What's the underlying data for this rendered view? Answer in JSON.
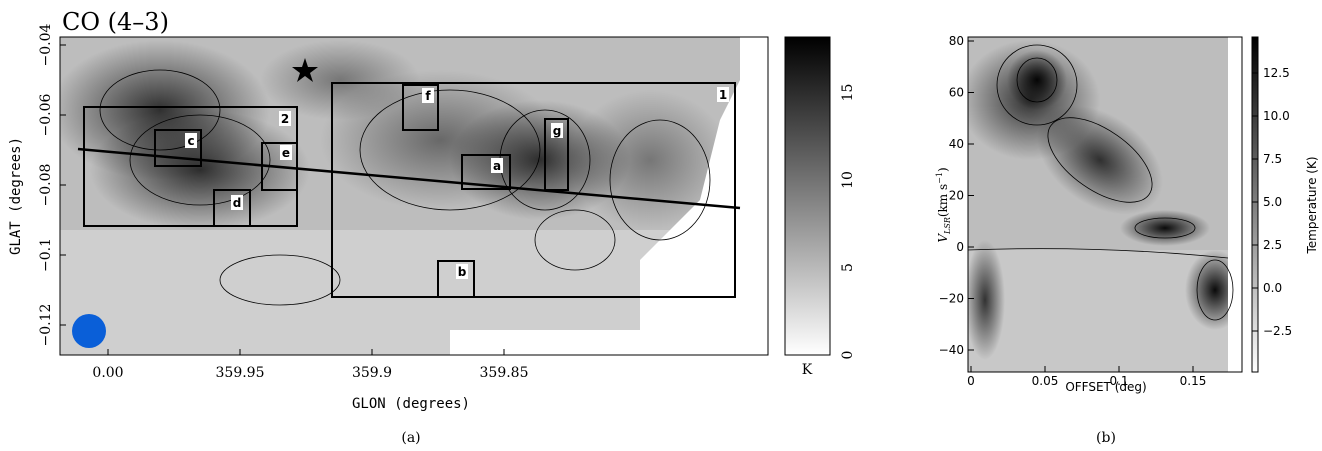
{
  "panel_a": {
    "title": "CO (4–3)",
    "x_label": "GLON (degrees)",
    "y_label": "GLAT (degrees)",
    "x_ticks": [
      "0.00",
      "359.95",
      "359.9",
      "359.85"
    ],
    "y_ticks": [
      "−0.04",
      "−0.06",
      "−0.08",
      "−0.1",
      "−0.12"
    ],
    "colorbar_ticks": [
      "0",
      "5",
      "10",
      "15"
    ],
    "colorbar_unit": "K",
    "regions": [
      "1",
      "2",
      "a",
      "b",
      "c",
      "d",
      "e",
      "f",
      "g"
    ],
    "caption": "(a)"
  },
  "panel_b": {
    "x_label": "OFFSET (deg)",
    "y_label_main": "V",
    "y_label_sub": "LSR",
    "y_label_unit": "(km s",
    "y_label_exp": "−1",
    "y_label_close": ")",
    "x_ticks": [
      "0",
      "0.05",
      "0.1",
      "0.15"
    ],
    "y_ticks": [
      "80",
      "60",
      "40",
      "20",
      "0",
      "−20",
      "−40"
    ],
    "colorbar_ticks": [
      "12.5",
      "10.0",
      "7.5",
      "5.0",
      "2.5",
      "0.0",
      "−2.5"
    ],
    "colorbar_label": "Temperature (K)",
    "caption": "(b)"
  }
}
